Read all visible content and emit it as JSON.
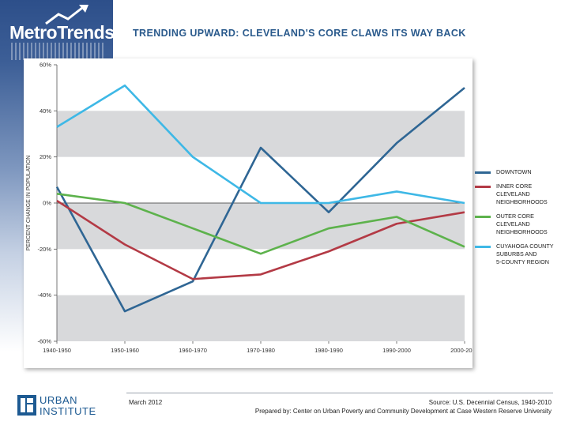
{
  "brand": {
    "logo": "MetroTrends",
    "org_line1": "URBAN",
    "org_line2": "INSTITUTE"
  },
  "header": {
    "title": "TRENDING UPWARD: CLEVELAND'S CORE CLAWS ITS WAY BACK"
  },
  "footer": {
    "date": "March 2012",
    "source": "Source: U.S. Decennial Census, 1940-2010",
    "prepared_by": "Prepared by: Center on Urban Poverty and Community Development at Case Western Reserve University"
  },
  "colors": {
    "downtown": "#2f6694",
    "inner_core": "#b33a45",
    "outer_core": "#5db24c",
    "suburbs": "#3eb8e6",
    "band": "#d8d9db"
  },
  "chart_data": {
    "type": "line",
    "title": "TRENDING UPWARD: CLEVELAND'S CORE CLAWS ITS WAY BACK",
    "xlabel": "",
    "ylabel": "PERCENT CHANGE IN POPULATION",
    "categories": [
      "1940-1950",
      "1950-1960",
      "1960-1970",
      "1970-1980",
      "1980-1990",
      "1990-2000",
      "2000-2010"
    ],
    "ylim": [
      -60,
      60
    ],
    "yticks": [
      60,
      40,
      20,
      0,
      -20,
      -40,
      -60
    ],
    "ytick_labels": [
      "60%",
      "40%",
      "20%",
      "0%",
      "-20%",
      "-40%",
      "-60%"
    ],
    "legend_position": "right",
    "series": [
      {
        "name": "DOWNTOWN",
        "label": "DOWNTOWN",
        "color": "#2f6694",
        "values": [
          7,
          -47,
          -34,
          24,
          -4,
          26,
          50
        ]
      },
      {
        "name": "INNER CORE CLEVELAND NEIGHBORHOODS",
        "label": "INNER CORE\nCLEVELAND\nNEIGHBORHOODS",
        "color": "#b33a45",
        "values": [
          1,
          -18,
          -33,
          -31,
          -21,
          -9,
          -4
        ]
      },
      {
        "name": "OUTER CORE CLEVELAND NEIGHBORHOODS",
        "label": "OUTER CORE\nCLEVELAND\nNEIGHBORHOODS",
        "color": "#5db24c",
        "values": [
          4,
          0,
          -11,
          -22,
          -11,
          -6,
          -19
        ]
      },
      {
        "name": "CUYAHOGA COUNTY SUBURBS AND 5-COUNTY REGION",
        "label": "CUYAHOGA COUNTY\nSUBURBS AND\n5-COUNTY REGION",
        "color": "#3eb8e6",
        "values": [
          33,
          51,
          20,
          0,
          0,
          5,
          0
        ]
      }
    ]
  }
}
